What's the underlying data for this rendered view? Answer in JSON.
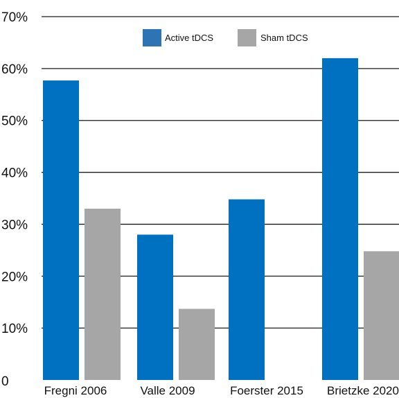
{
  "chart_data": {
    "type": "bar",
    "title": "",
    "xlabel": "",
    "ylabel": "",
    "categories": [
      "Fregni 2006",
      "Valle 2009",
      "Foerster 2015",
      "Brietzke 2020"
    ],
    "series": [
      {
        "name": "Active tDCS",
        "color": "#0070c0",
        "values": [
          57.7,
          28.0,
          34.8,
          62.0
        ]
      },
      {
        "name": "Sham tDCS",
        "color": "#a6a6a6",
        "values": [
          33.0,
          13.7,
          null,
          24.8
        ]
      }
    ],
    "ylim": [
      0,
      70
    ],
    "y_ticks": [
      0,
      10,
      20,
      30,
      40,
      50,
      60,
      70
    ],
    "y_tick_labels": [
      "0",
      "10%",
      "20%",
      "30%",
      "40%",
      "50%",
      "60%",
      "70%"
    ],
    "grid": true,
    "legend_position": "top-center",
    "legend_swatch_colors": [
      "#2e74b5",
      "#a6a6a6"
    ]
  }
}
